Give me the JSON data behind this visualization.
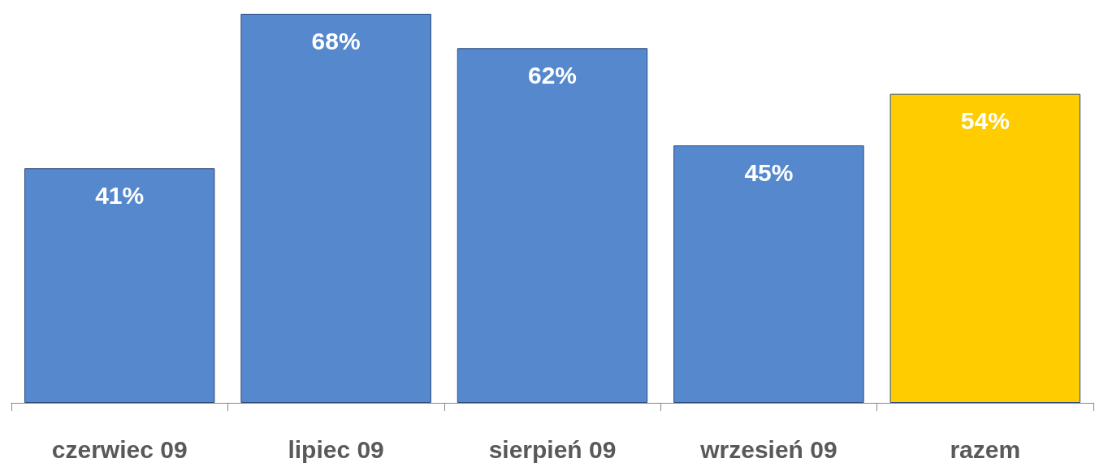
{
  "chart_data": {
    "type": "bar",
    "categories": [
      "czerwiec 09",
      "lipiec 09",
      "sierpień 09",
      "wrzesień 09",
      "razem"
    ],
    "values": [
      41,
      68,
      62,
      45,
      54
    ],
    "colors": [
      "#5588cc",
      "#5588cc",
      "#5588cc",
      "#5588cc",
      "#ffcc00"
    ],
    "value_labels": [
      "41%",
      "68%",
      "62%",
      "45%",
      "54%"
    ],
    "grid": false
  }
}
